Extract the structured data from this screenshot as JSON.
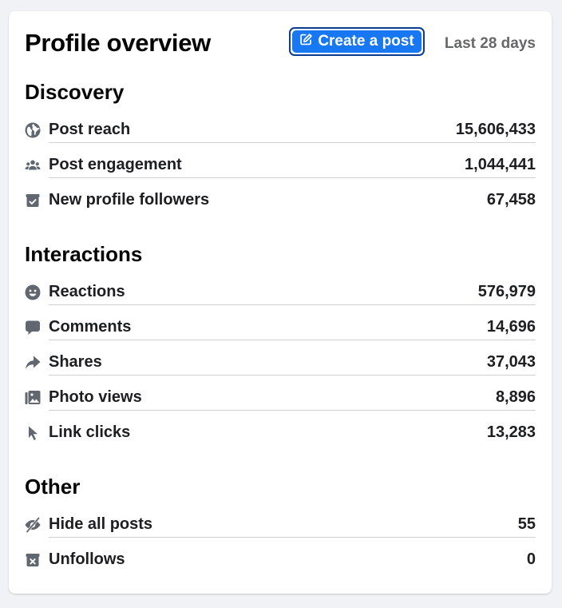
{
  "header": {
    "title": "Profile overview",
    "create_button_label": "Create a post",
    "date_range": "Last 28 days"
  },
  "colors": {
    "accent": "#1877f2",
    "icon": "#606770",
    "muted_text": "#65676b"
  },
  "sections": [
    {
      "title": "Discovery",
      "rows": [
        {
          "icon": "globe-icon",
          "label": "Post reach",
          "value": "15,606,433"
        },
        {
          "icon": "people-icon",
          "label": "Post engagement",
          "value": "1,044,441"
        },
        {
          "icon": "follower-box-icon",
          "label": "New profile followers",
          "value": "67,458"
        }
      ]
    },
    {
      "title": "Interactions",
      "rows": [
        {
          "icon": "smiley-icon",
          "label": "Reactions",
          "value": "576,979"
        },
        {
          "icon": "comment-icon",
          "label": "Comments",
          "value": "14,696"
        },
        {
          "icon": "share-arrow-icon",
          "label": "Shares",
          "value": "37,043"
        },
        {
          "icon": "photo-icon",
          "label": "Photo views",
          "value": "8,896"
        },
        {
          "icon": "cursor-icon",
          "label": "Link clicks",
          "value": "13,283"
        }
      ]
    },
    {
      "title": "Other",
      "rows": [
        {
          "icon": "eye-off-icon",
          "label": "Hide all posts",
          "value": "55"
        },
        {
          "icon": "unfollow-box-icon",
          "label": "Unfollows",
          "value": "0"
        }
      ]
    }
  ]
}
